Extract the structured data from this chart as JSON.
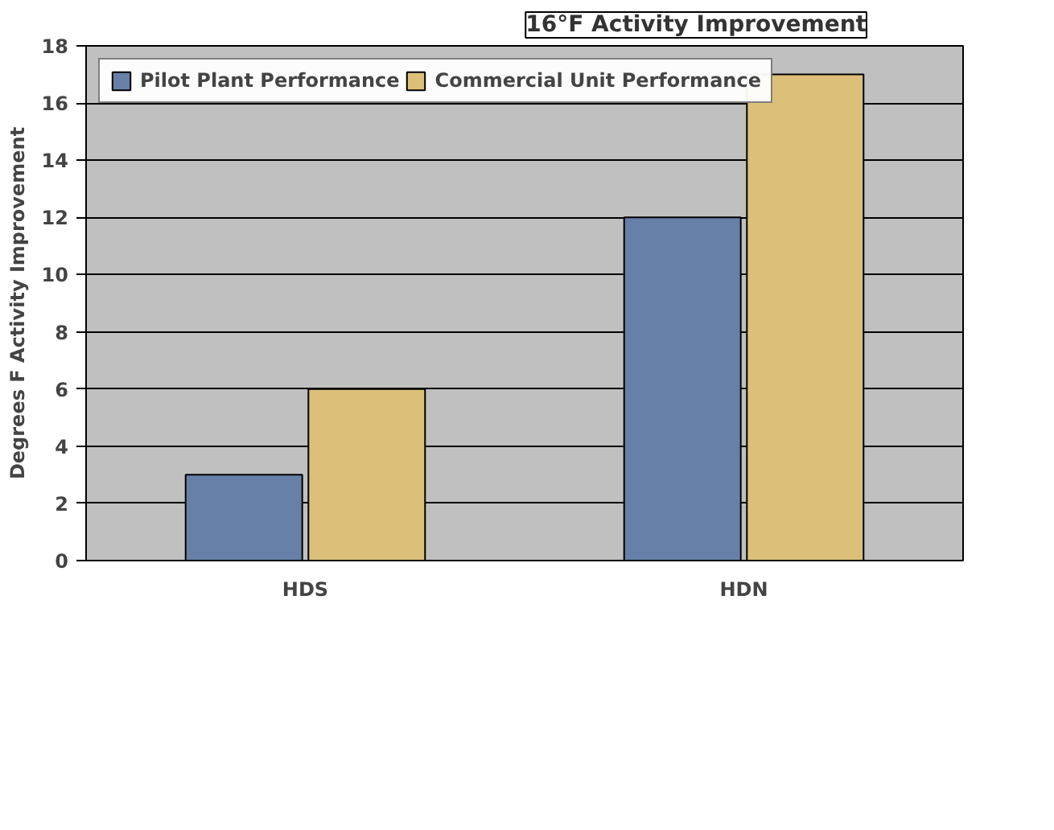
{
  "chart_data": {
    "type": "bar",
    "ylabel": "Degrees F Activity Improvement",
    "categories": [
      "HDS",
      "HDN"
    ],
    "series": [
      {
        "name": "Pilot Plant Performance",
        "color": "#6680a8",
        "values": [
          3,
          12
        ]
      },
      {
        "name": "Commercial Unit Performance",
        "color": "#dcc07a",
        "values": [
          6,
          17
        ]
      }
    ],
    "ylim": [
      0,
      18
    ],
    "yticks": [
      0,
      2,
      4,
      6,
      8,
      10,
      12,
      14,
      16,
      18
    ],
    "grid": "y",
    "legend": "top left",
    "annotations": [
      "16°F Activity Improvement"
    ]
  }
}
